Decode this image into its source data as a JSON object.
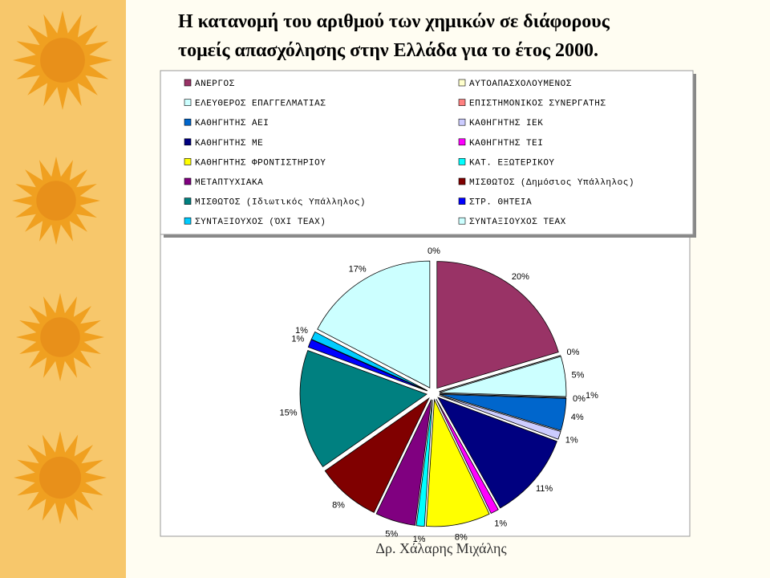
{
  "chart_data": {
    "type": "pie",
    "title": [
      "Η κατανομή του αριθμού των χημικών σε διάφορους",
      "τομείς απασχόλησης στην Ελλάδα για το έτος 2000."
    ],
    "categories": [
      "ΑΝΕΡΓΟΣ",
      "ΑΥΤΟΑΠΑΣΧΟΛΟΥΜΕΝΟΣ",
      "ΕΛΕΥΘΕΡΟΣ ΕΠΑΓΓΕΛΜΑΤΙΑΣ",
      "ΕΠΙΣΤΗΜΟΝΙΚΟΣ ΣΥΝΕΡΓΑΤΗΣ",
      "ΚΑΘΗΓΗΤΗΣ ΑΕΙ",
      "ΚΑΘΗΓΗΤΗΣ ΙΕΚ",
      "ΚΑΘΗΓΗΤΗΣ ΜΕ",
      "ΚΑΘΗΓΗΤΗΣ ΤΕΙ",
      "ΚΑΘΗΓΗΤΗΣ ΦΡΟΝΤΙΣΤΗΡΙΟΥ",
      "ΚΑΤ. ΕΞΩΤΕΡΙΚΟΥ",
      "ΜΕΤΑΠΤΥΧΙΑΚΑ",
      "ΜΙΣΘΩΤΟΣ (Δημόσιος Υπάλληλος)",
      "ΜΙΣΘΩΤΟΣ (Ιδιωτικός Υπάλληλος)",
      "ΣΤΡ. ΘΗΤΕΙΑ",
      "ΣΥΝΤΑΞΙΟΥΧΟΣ (ΌΧΙ ΤΕΑΧ)",
      "ΣΥΝΤΑΞΙΟΥΧΟΣ ΤΕΑΧ"
    ],
    "values": [
      20,
      0,
      5,
      0,
      4,
      1,
      11,
      1,
      8,
      1,
      5,
      8,
      15,
      1,
      1,
      17
    ],
    "value_labels": [
      "20%",
      "0%",
      "5%",
      "0%",
      "4%",
      "1%",
      "11%",
      "1%",
      "8%",
      "1%",
      "5%",
      "8%",
      "15%",
      "1%",
      "1%",
      "17%"
    ],
    "colors": [
      "#993366",
      "#ffffcc",
      "#ccffff",
      "#ff8080",
      "#0066cc",
      "#ccccff",
      "#000080",
      "#ff00ff",
      "#ffff00",
      "#00ffff",
      "#800080",
      "#800000",
      "#008080",
      "#0000ff",
      "#00ccff",
      "#ccffff"
    ],
    "annotations": [
      "0%",
      "1%"
    ],
    "footer": "Δρ. Χάλαρης Μιχάλης"
  }
}
